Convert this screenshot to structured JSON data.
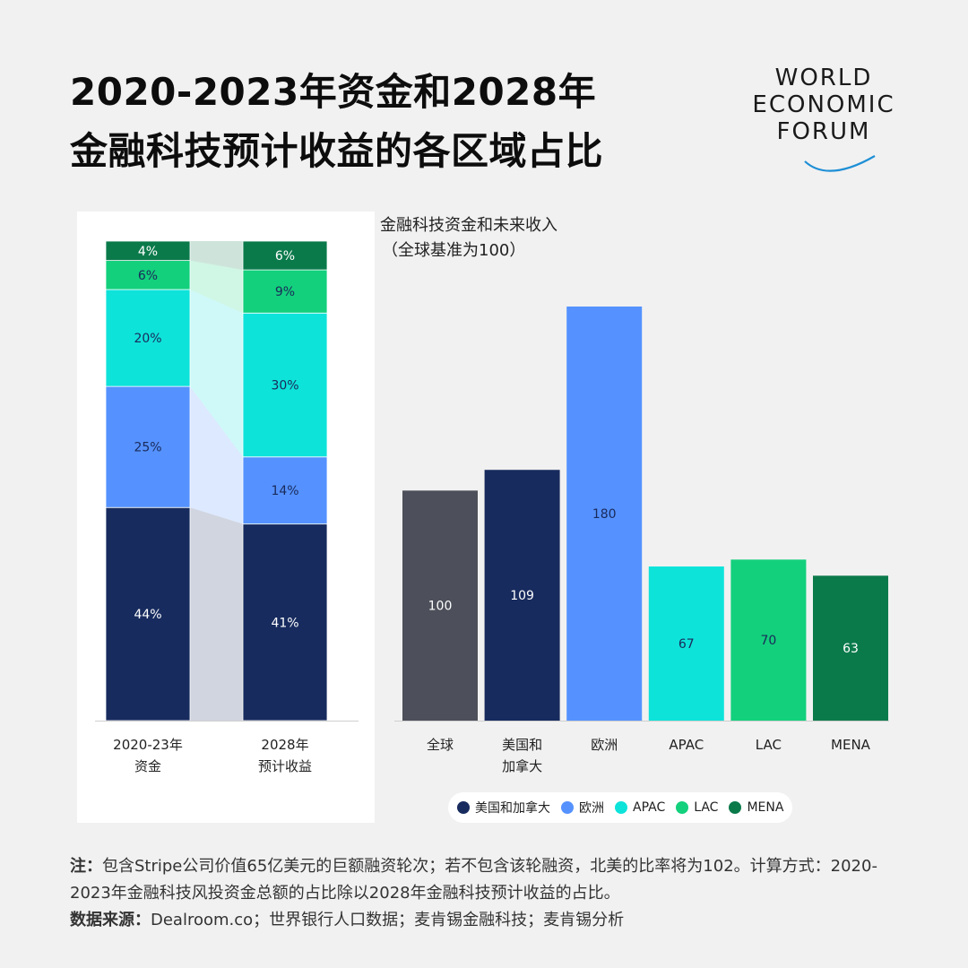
{
  "title": {
    "line1": "2020-2023年资金和2028年",
    "line2": "金融科技预计收益的各区域占比"
  },
  "logo": {
    "line1": "WORLD",
    "line2": "ECONOMIC",
    "line3": "FORUM"
  },
  "right_subtitle": {
    "line1": "金融科技资金和未来收入",
    "line2": "（全球基准为100）"
  },
  "colors": {
    "north_america": "#172b5e",
    "europe": "#5592ff",
    "apac": "#0ee3da",
    "lac": "#13d07c",
    "mena": "#0b7a4b",
    "global": "#4d505a"
  },
  "chart_data": [
    {
      "type": "bar",
      "stacked": true,
      "categories": [
        "2020-23年\n资金",
        "2028年\n预计收益"
      ],
      "series": [
        {
          "name": "美国和加拿大",
          "values": [
            44,
            41
          ],
          "labels": [
            "44%",
            "41%"
          ]
        },
        {
          "name": "欧洲",
          "values": [
            25,
            14
          ],
          "labels": [
            "25%",
            "14%"
          ]
        },
        {
          "name": "APAC",
          "values": [
            20,
            30
          ],
          "labels": [
            "20%",
            "30%"
          ]
        },
        {
          "name": "LAC",
          "values": [
            6,
            9
          ],
          "labels": [
            "6%",
            "9%"
          ]
        },
        {
          "name": "MENA",
          "values": [
            4,
            6
          ],
          "labels": [
            "4%",
            "6%"
          ]
        }
      ],
      "ylim": [
        0,
        100
      ]
    },
    {
      "type": "bar",
      "title": "金融科技资金和未来收入",
      "subtitle": "（全球基准为100）",
      "categories": [
        "全球",
        "美国和\n加拿大",
        "欧洲",
        "APAC",
        "LAC",
        "MENA"
      ],
      "values": [
        100,
        109,
        180,
        67,
        70,
        63
      ],
      "labels": [
        "100",
        "109",
        "180",
        "67",
        "70",
        "63"
      ],
      "ylim": [
        0,
        180
      ]
    }
  ],
  "legend": [
    {
      "label": "美国和加拿大",
      "color": "#172b5e"
    },
    {
      "label": "欧洲",
      "color": "#5592ff"
    },
    {
      "label": "APAC",
      "color": "#0ee3da"
    },
    {
      "label": "LAC",
      "color": "#13d07c"
    },
    {
      "label": "MENA",
      "color": "#0b7a4b"
    }
  ],
  "note": {
    "label": "注：",
    "text": "包含Stripe公司价值65亿美元的巨额融资轮次；若不包含该轮融资，北美的比率将为102。计算方式：2020-2023年金融科技风投资金总额的占比除以2028年金融科技预计收益的占比。",
    "source_label": "数据来源：",
    "source_text": "Dealroom.co；世界银行人口数据；麦肯锡金融科技；麦肯锡分析"
  }
}
